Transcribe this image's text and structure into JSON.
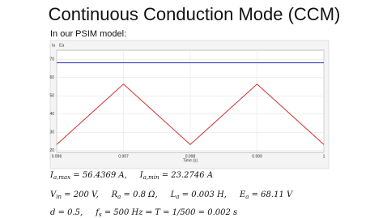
{
  "title": "Continuous Conduction Mode (CCM)",
  "subtitle": "In our PSIM model:",
  "chart_data": {
    "type": "line",
    "x_label": "Time (s)",
    "xlim": [
      0.996,
      1
    ],
    "xticks": [
      0.996,
      0.997,
      0.998,
      0.999,
      1
    ],
    "ylim": [
      19,
      75
    ],
    "yticks": [
      20,
      30,
      40,
      50,
      60,
      70
    ],
    "grid": true,
    "legend": "top-left",
    "series": [
      {
        "name": "Ia",
        "color": "#d03030",
        "x": [
          0.996,
          0.997,
          0.998,
          0.999,
          1
        ],
        "values": [
          23.2746,
          56.4369,
          23.2746,
          56.4369,
          23.2746
        ]
      },
      {
        "name": "Ea",
        "color": "#2030b0",
        "x": [
          0.996,
          1
        ],
        "values": [
          68.11,
          68.11
        ]
      }
    ]
  },
  "equations": [
    [
      {
        "main": "I",
        "sub": "a,max",
        "rest": " = 56.4369 A,"
      },
      {
        "main": "I",
        "sub": "a,min",
        "rest": " = 23.2746 A"
      }
    ],
    [
      {
        "main": "V",
        "sub": "in",
        "rest": " = 200 V,"
      },
      {
        "main": "R",
        "sub": "a",
        "rest": " = 0.8 Ω,"
      },
      {
        "main": "L",
        "sub": "a",
        "rest": " = 0.003 H,"
      },
      {
        "main": "E",
        "sub": "a",
        "rest": " = 68.11 V"
      }
    ],
    [
      {
        "main": "d",
        "rest": " = 0.5,"
      },
      {
        "main": "f",
        "sub": "s",
        "rest": " = 500 Hz ⇒ T = 1/500 = 0.002 s"
      }
    ]
  ]
}
